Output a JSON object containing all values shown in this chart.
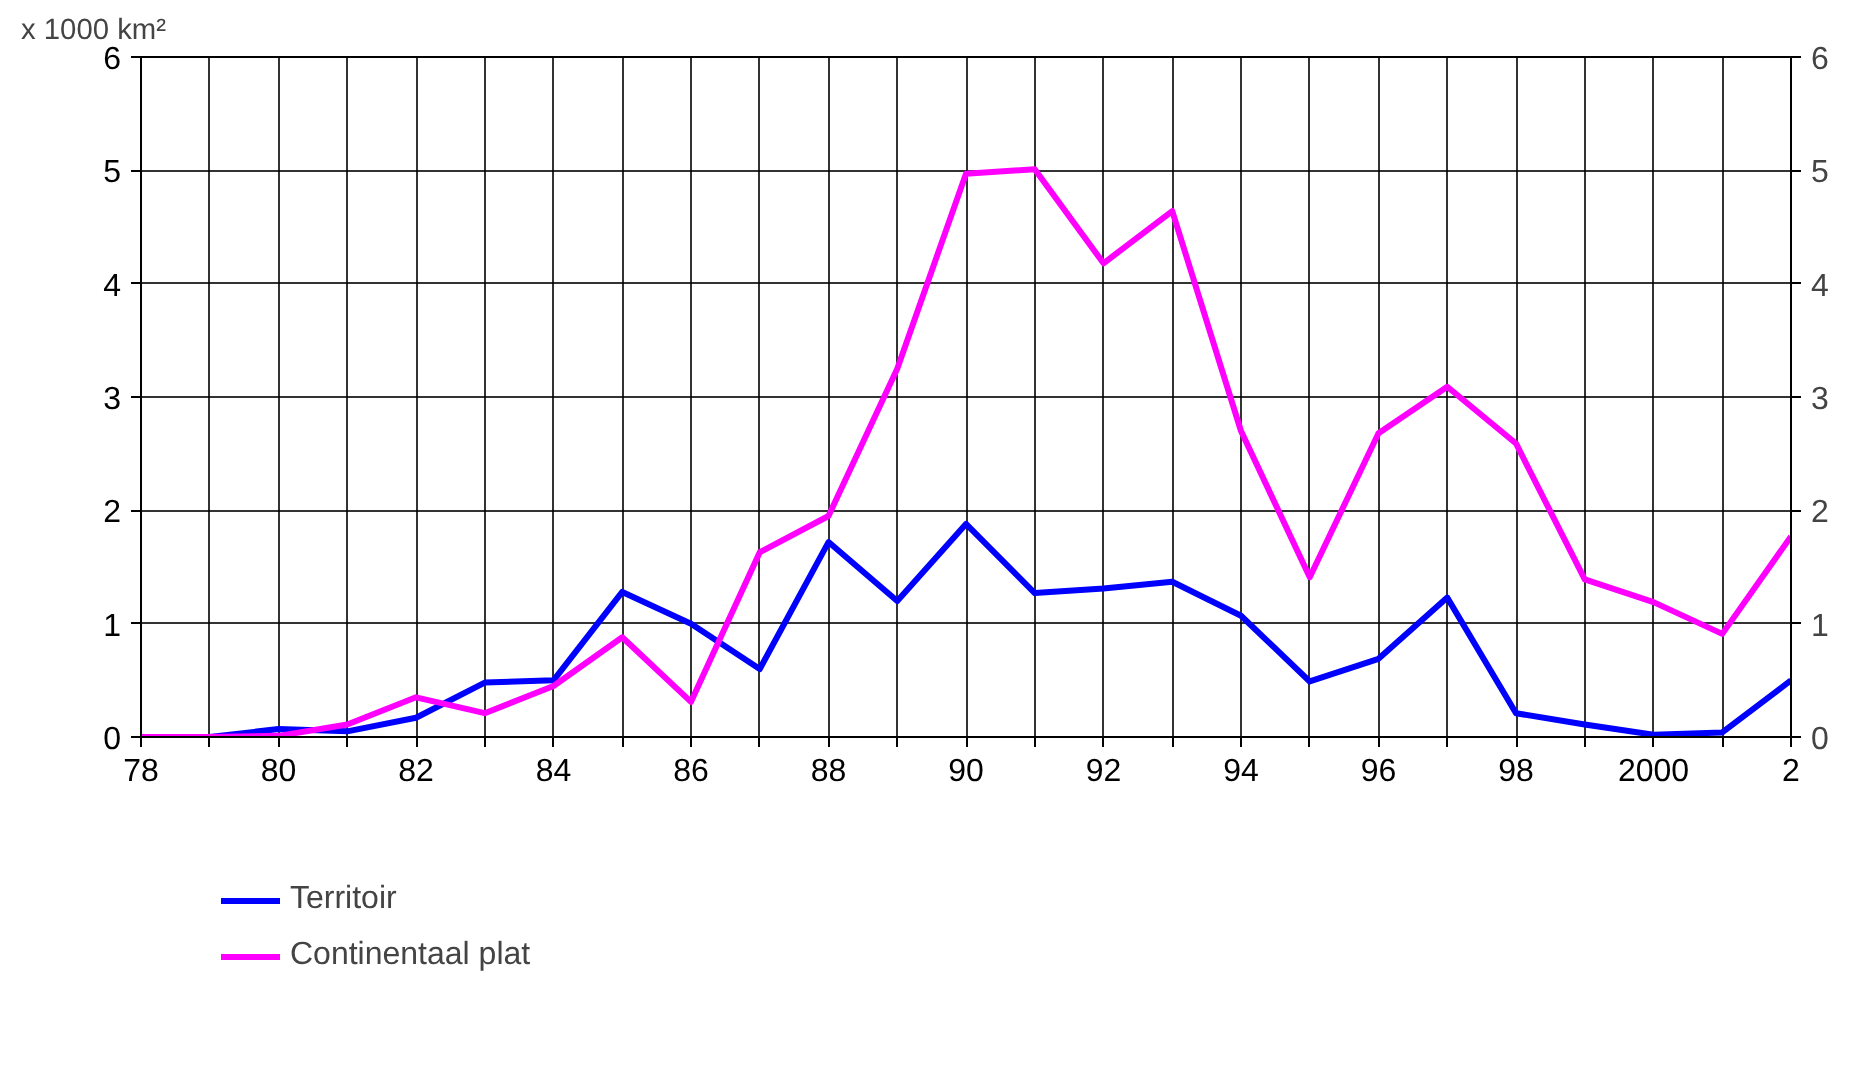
{
  "chart_data": {
    "type": "line",
    "ylabel": "x 1000 km²",
    "categories": [
      "78",
      null,
      "80",
      null,
      "82",
      null,
      "84",
      null,
      "86",
      null,
      "88",
      null,
      "90",
      null,
      "92",
      null,
      "94",
      null,
      "96",
      null,
      "98",
      null,
      "2000",
      null,
      "2"
    ],
    "series": [
      {
        "name": "Territoir",
        "color": "#0000ff",
        "values": [
          0,
          0,
          0.07,
          0.05,
          0.17,
          0.48,
          0.5,
          1.28,
          1.0,
          0.6,
          1.72,
          1.2,
          1.88,
          1.27,
          1.31,
          1.37,
          1.07,
          0.49,
          0.69,
          1.23,
          0.21,
          0.11,
          0.02,
          0.04,
          0.5
        ]
      },
      {
        "name": "Continentaal plat",
        "color": "#ff00ff",
        "values": [
          0,
          0,
          0.01,
          0.11,
          0.35,
          0.21,
          0.45,
          0.88,
          0.31,
          1.63,
          1.95,
          3.25,
          4.97,
          5.01,
          4.18,
          4.64,
          2.7,
          1.41,
          2.68,
          3.09,
          2.59,
          1.39,
          1.19,
          0.91,
          1.77
        ]
      }
    ],
    "ylim": [
      0,
      6
    ],
    "yticks": [
      0,
      1,
      2,
      3,
      4,
      5,
      6
    ],
    "y2lim": [
      0,
      6
    ],
    "y2ticks": [
      0,
      1,
      2,
      3,
      4,
      5,
      6
    ],
    "grid": true,
    "legend": "bottom",
    "marker": "none",
    "line_style": "solid"
  }
}
